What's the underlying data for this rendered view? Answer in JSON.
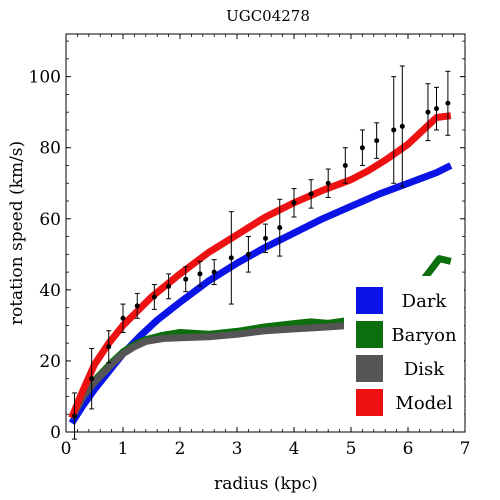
{
  "chart_data": {
    "type": "line",
    "title": "UGC04278",
    "xlabel": "radius (kpc)",
    "ylabel": "rotation speed (km/s)",
    "xlim": [
      0,
      7
    ],
    "ylim": [
      0,
      112
    ],
    "xticks": [
      0,
      1,
      2,
      3,
      4,
      5,
      6,
      7
    ],
    "yticks": [
      0,
      20,
      40,
      60,
      80,
      100
    ],
    "legend_position": "bottom-right",
    "series": [
      {
        "name": "Dark",
        "color": "#0a14e6",
        "x": [
          0.1,
          0.3,
          0.5,
          0.8,
          1.0,
          1.3,
          1.6,
          2.0,
          2.5,
          3.0,
          3.5,
          4.0,
          4.5,
          5.0,
          5.5,
          6.0,
          6.5,
          6.75
        ],
        "y": [
          2.5,
          7.5,
          12,
          18,
          22,
          27,
          31.5,
          36.5,
          42.5,
          47.5,
          52,
          56,
          60,
          63.5,
          67,
          70,
          73,
          75
        ]
      },
      {
        "name": "Baryon",
        "color": "#0c6e0c",
        "x": [
          0.1,
          0.3,
          0.5,
          0.8,
          1.0,
          1.2,
          1.4,
          1.7,
          2.0,
          2.5,
          3.0,
          3.5,
          4.0,
          4.3,
          4.6,
          5.0,
          5.5,
          6.0,
          6.3,
          6.55,
          6.75
        ],
        "y": [
          4,
          10,
          14.5,
          19.5,
          22.5,
          24.5,
          26,
          27.2,
          28,
          27.5,
          28.3,
          29.6,
          30.5,
          31,
          30.6,
          31.5,
          33.8,
          38.5,
          43.5,
          48.8,
          48
        ]
      },
      {
        "name": "Disk",
        "color": "#555555",
        "x": [
          0.1,
          0.3,
          0.5,
          0.8,
          1.0,
          1.2,
          1.4,
          1.7,
          2.0,
          2.5,
          3.0,
          3.5,
          4.0,
          4.5,
          5.0,
          5.3
        ],
        "y": [
          4,
          10,
          14,
          19,
          22,
          24,
          25.5,
          26.3,
          26.5,
          26.8,
          27.5,
          28.5,
          29,
          29.5,
          30,
          30.3
        ]
      },
      {
        "name": "Model",
        "color": "#ee1111",
        "x": [
          0.1,
          0.25,
          0.5,
          0.75,
          1.0,
          1.25,
          1.5,
          2.0,
          2.5,
          3.0,
          3.5,
          4.0,
          4.5,
          5.0,
          5.3,
          5.6,
          6.0,
          6.3,
          6.5,
          6.75
        ],
        "y": [
          4,
          10,
          19,
          25,
          30,
          34,
          38,
          44.5,
          50.5,
          55.5,
          60.5,
          64.5,
          68,
          71,
          73.5,
          76.5,
          81,
          85.5,
          88.5,
          89
        ]
      }
    ],
    "observations": {
      "name": "data",
      "color": "#000000",
      "points": [
        {
          "x": 0.15,
          "y": 4.5,
          "err": 6.5
        },
        {
          "x": 0.45,
          "y": 15,
          "err": 8.5
        },
        {
          "x": 0.75,
          "y": 24,
          "err": 4.5
        },
        {
          "x": 1.0,
          "y": 32,
          "err": 4
        },
        {
          "x": 1.25,
          "y": 35.5,
          "err": 3.5
        },
        {
          "x": 1.55,
          "y": 38,
          "err": 3.5
        },
        {
          "x": 1.8,
          "y": 41,
          "err": 3.5
        },
        {
          "x": 2.1,
          "y": 43,
          "err": 3.5
        },
        {
          "x": 2.35,
          "y": 44.5,
          "err": 3.5
        },
        {
          "x": 2.6,
          "y": 45,
          "err": 3.5
        },
        {
          "x": 2.9,
          "y": 49,
          "err": 13
        },
        {
          "x": 3.2,
          "y": 50,
          "err": 5
        },
        {
          "x": 3.5,
          "y": 54.5,
          "err": 4
        },
        {
          "x": 3.75,
          "y": 57.5,
          "err": 8
        },
        {
          "x": 4.0,
          "y": 64.5,
          "err": 4
        },
        {
          "x": 4.3,
          "y": 67,
          "err": 4
        },
        {
          "x": 4.6,
          "y": 70,
          "err": 4
        },
        {
          "x": 4.9,
          "y": 75,
          "err": 5
        },
        {
          "x": 5.2,
          "y": 80,
          "err": 5
        },
        {
          "x": 5.45,
          "y": 82,
          "err": 5
        },
        {
          "x": 5.75,
          "y": 85,
          "err": 15
        },
        {
          "x": 5.9,
          "y": 86,
          "err": 17
        },
        {
          "x": 6.35,
          "y": 90,
          "err": 8
        },
        {
          "x": 6.5,
          "y": 91,
          "err": 6
        },
        {
          "x": 6.7,
          "y": 92.5,
          "err": 9
        }
      ]
    }
  }
}
